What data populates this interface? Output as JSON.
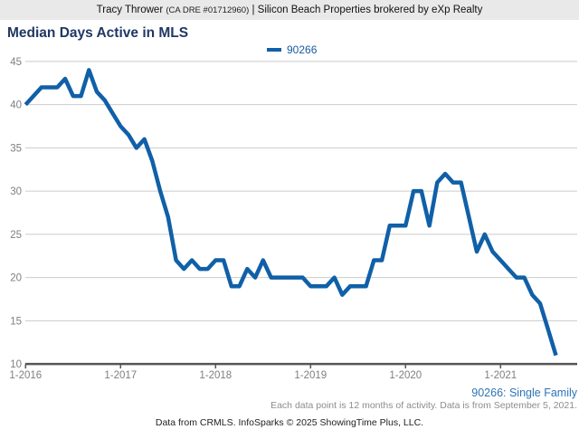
{
  "header": {
    "agent_name": "Tracy Thrower",
    "license": "(CA DRE #01712960)",
    "divider": "|",
    "brokerage": "Silicon Beach Properties brokered by eXp Realty"
  },
  "title": "Median Days Active in MLS",
  "legend": {
    "label": "90266"
  },
  "footer": {
    "series_note": "90266: Single Family",
    "data_note": "Each data point is 12 months of activity. Data is from September 5, 2021.",
    "attribution": "Data from CRMLS. InfoSparks © 2025 ShowingTime Plus, LLC."
  },
  "colors": {
    "line": "#1060a8",
    "title": "#1f3864",
    "legend_text": "#155a9e",
    "series_note": "#2e74b5",
    "gridline": "#cbcbcb",
    "axis": "#555555",
    "tick_label": "#7f7f7f",
    "header_bg": "#e9e9e9"
  },
  "chart_data": {
    "type": "line",
    "title": "Median Days Active in MLS",
    "ylim": [
      10,
      45
    ],
    "y_ticks": [
      45,
      40,
      35,
      30,
      25,
      20,
      15,
      10
    ],
    "x_tick_labels": [
      "1-2016",
      "1-2017",
      "1-2018",
      "1-2019",
      "1-2020",
      "1-2021"
    ],
    "x_start_month": "2016-01",
    "x_end_month": "2021-08",
    "months_per_point": 1,
    "grid": true,
    "legend_position": "top-center",
    "series": [
      {
        "name": "90266",
        "values": [
          40,
          41,
          42,
          42,
          42,
          43,
          41,
          41,
          44,
          41.5,
          40.5,
          39,
          37.5,
          36.5,
          35,
          36,
          33.5,
          30,
          27,
          22,
          21,
          22,
          21,
          21,
          22,
          22,
          19,
          19,
          21,
          20,
          22,
          20,
          20,
          20,
          20,
          20,
          19,
          19,
          19,
          20,
          18,
          19,
          19,
          19,
          22,
          22,
          26,
          26,
          26,
          30,
          30,
          26,
          31,
          32,
          31,
          31,
          27,
          23,
          25,
          23,
          22,
          21,
          20,
          20,
          18,
          17,
          14,
          11
        ]
      }
    ]
  }
}
